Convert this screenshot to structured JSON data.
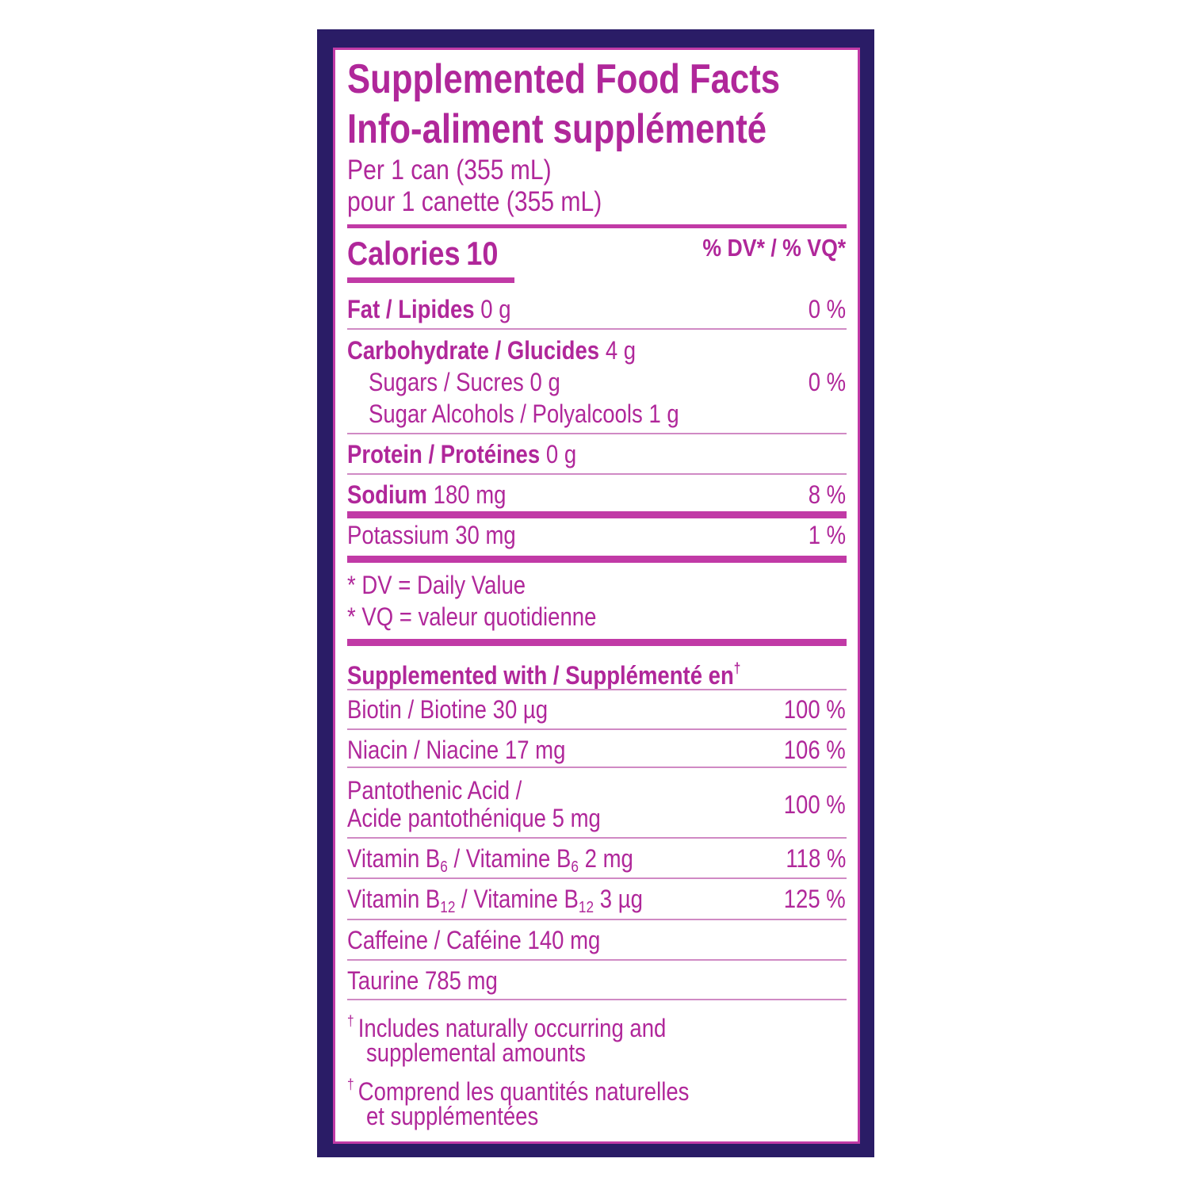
{
  "header": {
    "title": [
      "Supplemented Food Facts",
      "Info-aliment supplémenté"
    ],
    "serving": [
      "Per 1 can (355 mL)",
      "pour 1 canette (355 mL)"
    ]
  },
  "calories": {
    "label": "Calories",
    "value": "10"
  },
  "dv_header": "% DV* / % VQ*",
  "nutrients": [
    {
      "name": "Fat / Lipides",
      "amount": "0 g",
      "dv": "0 %"
    },
    {
      "name": "Carbohydrate / Glucides",
      "amount": "4 g"
    },
    {
      "name": "Sugars / Sucres",
      "amount": "0 g",
      "dv": "0 %"
    },
    {
      "name": "Sugar Alcohols / Polyalcools",
      "amount": "1 g"
    },
    {
      "name": "Protein / Protéines",
      "amount": "0 g"
    },
    {
      "name": "Sodium",
      "amount": "180 mg",
      "dv": "8 %"
    },
    {
      "name": "Potassium",
      "amount": "30 mg",
      "dv": "1 %"
    }
  ],
  "dv_notes": [
    "* DV = Daily Value",
    "* VQ = valeur quotidienne"
  ],
  "supplemented": {
    "heading": "Supplemented with / Supplémenté en",
    "mark": "†",
    "items": [
      {
        "name": "Biotin / Biotine",
        "amount": "30 µg",
        "dv": "100 %"
      },
      {
        "name": "Niacin / Niacine",
        "amount": "17 mg",
        "dv": "106 %"
      },
      {
        "name": [
          "Pantothenic Acid /",
          "Acide pantothénique"
        ],
        "amount": "5 mg",
        "dv": "100 %"
      },
      {
        "name": [
          "Vitamin B",
          "6",
          " / Vitamine B",
          "6"
        ],
        "amount": "2 mg",
        "dv": "118 %"
      },
      {
        "name": [
          "Vitamin B",
          "12",
          " / Vitamine B",
          "12"
        ],
        "amount": "3 µg",
        "dv": "125 %"
      },
      {
        "name": "Caffeine / Caféine",
        "amount": "140 mg"
      },
      {
        "name": "Taurine",
        "amount": "785 mg"
      }
    ]
  },
  "footnotes": [
    {
      "mark": "†",
      "lines": [
        "Includes naturally occurring and",
        "supplemental amounts"
      ]
    },
    {
      "mark": "†",
      "lines": [
        "Comprend les quantités naturelles",
        "et supplémentées"
      ]
    }
  ]
}
